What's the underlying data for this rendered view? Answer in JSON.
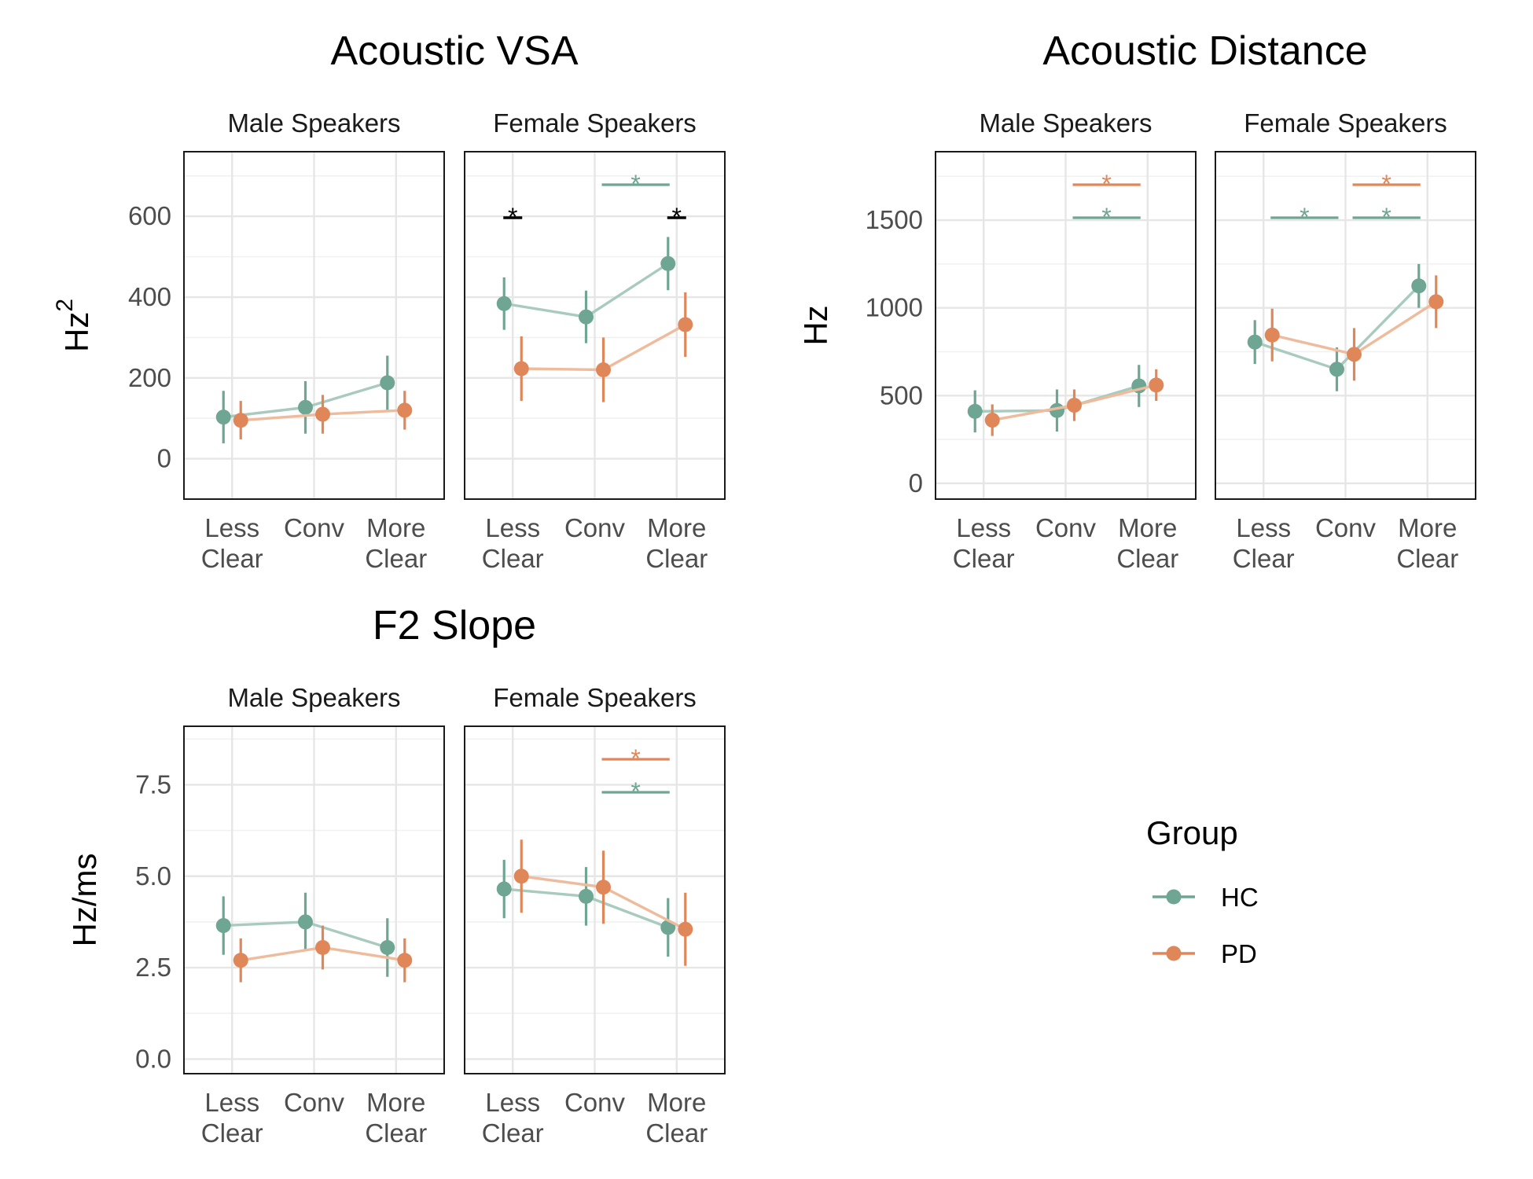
{
  "chart_data": [
    {
      "type": "line",
      "title": "Acoustic VSA",
      "ylabel_base": "Hz",
      "ylabel_sup": "2",
      "ylim": [
        -100,
        760
      ],
      "yticks": [
        0,
        200,
        400,
        600
      ],
      "categories": [
        "Less\nClear",
        "Conv",
        "More\nClear"
      ],
      "grid": true,
      "panels": [
        {
          "strip": "Male Speakers",
          "series": [
            {
              "name": "HC",
              "values": [
                103,
                127,
                188
              ],
              "lower": [
                38,
                62,
                121
              ],
              "upper": [
                168,
                192,
                255
              ]
            },
            {
              "name": "PD",
              "values": [
                95,
                110,
                120
              ],
              "lower": [
                48,
                62,
                72
              ],
              "upper": [
                143,
                158,
                168
              ]
            }
          ],
          "significance": []
        },
        {
          "strip": "Female Speakers",
          "series": [
            {
              "name": "HC",
              "values": [
                384,
                351,
                483
              ],
              "lower": [
                319,
                286,
                417
              ],
              "upper": [
                449,
                416,
                549
              ]
            },
            {
              "name": "PD",
              "values": [
                223,
                220,
                332
              ],
              "lower": [
                143,
                140,
                252
              ],
              "upper": [
                303,
                300,
                412
              ]
            }
          ],
          "significance": [
            {
              "from": 0,
              "to": 0,
              "color": "black",
              "level": 1,
              "label": "*"
            },
            {
              "from": 2,
              "to": 2,
              "color": "black",
              "level": 1,
              "label": "*"
            },
            {
              "from": 1,
              "to": 2,
              "color": "HC",
              "level": 2,
              "label": "*"
            }
          ]
        }
      ]
    },
    {
      "type": "line",
      "title": "Acoustic Distance",
      "ylabel_base": "Hz",
      "ylabel_sup": "",
      "ylim": [
        -90,
        1890
      ],
      "yticks": [
        0,
        500,
        1000,
        1500
      ],
      "categories": [
        "Less\nClear",
        "Conv",
        "More\nClear"
      ],
      "grid": true,
      "panels": [
        {
          "strip": "Male Speakers",
          "series": [
            {
              "name": "HC",
              "values": [
                410,
                415,
                555
              ],
              "lower": [
                290,
                295,
                435
              ],
              "upper": [
                530,
                535,
                675
              ]
            },
            {
              "name": "PD",
              "values": [
                360,
                445,
                560
              ],
              "lower": [
                270,
                355,
                470
              ],
              "upper": [
                450,
                535,
                650
              ]
            }
          ],
          "significance": [
            {
              "from": 1,
              "to": 2,
              "color": "HC",
              "level": 1,
              "label": "*"
            },
            {
              "from": 1,
              "to": 2,
              "color": "PD",
              "level": 2,
              "label": "*"
            }
          ]
        },
        {
          "strip": "Female Speakers",
          "series": [
            {
              "name": "HC",
              "values": [
                805,
                650,
                1125
              ],
              "lower": [
                680,
                525,
                1000
              ],
              "upper": [
                930,
                775,
                1250
              ]
            },
            {
              "name": "PD",
              "values": [
                845,
                735,
                1035
              ],
              "lower": [
                695,
                585,
                885
              ],
              "upper": [
                995,
                885,
                1185
              ]
            }
          ],
          "significance": [
            {
              "from": 0,
              "to": 1,
              "color": "HC",
              "level": 1,
              "label": "*"
            },
            {
              "from": 1,
              "to": 2,
              "color": "HC",
              "level": 1,
              "label": "*"
            },
            {
              "from": 1,
              "to": 2,
              "color": "PD",
              "level": 2,
              "label": "*"
            }
          ]
        }
      ]
    },
    {
      "type": "line",
      "title": "F2 Slope",
      "ylabel_base": "Hz/ms",
      "ylabel_sup": "",
      "ylim": [
        -0.4,
        9.1
      ],
      "yticks": [
        0.0,
        2.5,
        5.0,
        7.5
      ],
      "ytick_labels": [
        "0.0",
        "2.5",
        "5.0",
        "7.5"
      ],
      "categories": [
        "Less\nClear",
        "Conv",
        "More\nClear"
      ],
      "grid": true,
      "panels": [
        {
          "strip": "Male Speakers",
          "series": [
            {
              "name": "HC",
              "values": [
                3.65,
                3.75,
                3.05
              ],
              "lower": [
                2.85,
                2.95,
                2.25
              ],
              "upper": [
                4.45,
                4.55,
                3.85
              ]
            },
            {
              "name": "PD",
              "values": [
                2.7,
                3.05,
                2.7
              ],
              "lower": [
                2.1,
                2.45,
                2.1
              ],
              "upper": [
                3.3,
                3.65,
                3.3
              ]
            }
          ],
          "significance": []
        },
        {
          "strip": "Female Speakers",
          "series": [
            {
              "name": "HC",
              "values": [
                4.65,
                4.45,
                3.6
              ],
              "lower": [
                3.85,
                3.65,
                2.8
              ],
              "upper": [
                5.45,
                5.25,
                4.4
              ]
            },
            {
              "name": "PD",
              "values": [
                5.0,
                4.7,
                3.55
              ],
              "lower": [
                4.0,
                3.7,
                2.55
              ],
              "upper": [
                6.0,
                5.7,
                4.55
              ]
            }
          ],
          "significance": [
            {
              "from": 1,
              "to": 2,
              "color": "HC",
              "level": 1,
              "label": "*"
            },
            {
              "from": 1,
              "to": 2,
              "color": "PD",
              "level": 2,
              "label": "*"
            }
          ]
        }
      ]
    }
  ],
  "legend": {
    "title": "Group",
    "items": [
      {
        "label": "HC",
        "color": "#6fa593"
      },
      {
        "label": "PD",
        "color": "#e0875a"
      }
    ]
  },
  "colors": {
    "HC": "#6fa593",
    "PD": "#e0875a",
    "HC_line": "#a8cbbe",
    "PD_line": "#eebb9c",
    "black": "#000000"
  }
}
